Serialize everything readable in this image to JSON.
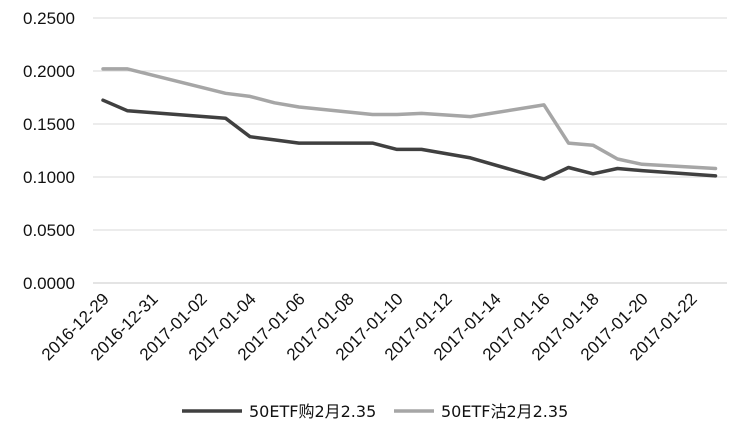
{
  "chart_data": {
    "type": "line",
    "title": "",
    "xlabel": "",
    "ylabel": "",
    "ylim": [
      0,
      0.25
    ],
    "yticks": [
      "0.0000",
      "0.0500",
      "0.1000",
      "0.1500",
      "0.2000",
      "0.2500"
    ],
    "x_tick_labels": [
      "2016-12-29",
      "2016-12-31",
      "2017-01-02",
      "2017-01-04",
      "2017-01-06",
      "2017-01-08",
      "2017-01-10",
      "2017-01-12",
      "2017-01-14",
      "2017-01-16",
      "2017-01-18",
      "2017-01-20",
      "2017-01-22"
    ],
    "x": [
      "2016-12-29",
      "2016-12-30",
      "2017-01-03",
      "2017-01-04",
      "2017-01-05",
      "2017-01-06",
      "2017-01-09",
      "2017-01-10",
      "2017-01-11",
      "2017-01-13",
      "2017-01-16",
      "2017-01-17",
      "2017-01-18",
      "2017-01-19",
      "2017-01-20",
      "2017-01-23"
    ],
    "series": [
      {
        "name": "50ETF购2月2.35",
        "color": "#404040",
        "values": [
          0.1725,
          0.1625,
          0.1555,
          0.138,
          0.135,
          0.132,
          0.132,
          0.126,
          0.126,
          0.118,
          0.098,
          0.109,
          0.103,
          0.108,
          0.106,
          0.101
        ]
      },
      {
        "name": "50ETF沽2月2.35",
        "color": "#a6a6a6",
        "values": [
          0.202,
          0.202,
          0.179,
          0.176,
          0.17,
          0.166,
          0.159,
          0.159,
          0.16,
          0.157,
          0.168,
          0.132,
          0.13,
          0.117,
          0.112,
          0.108
        ]
      }
    ],
    "grid": true,
    "legend_position": "bottom"
  }
}
